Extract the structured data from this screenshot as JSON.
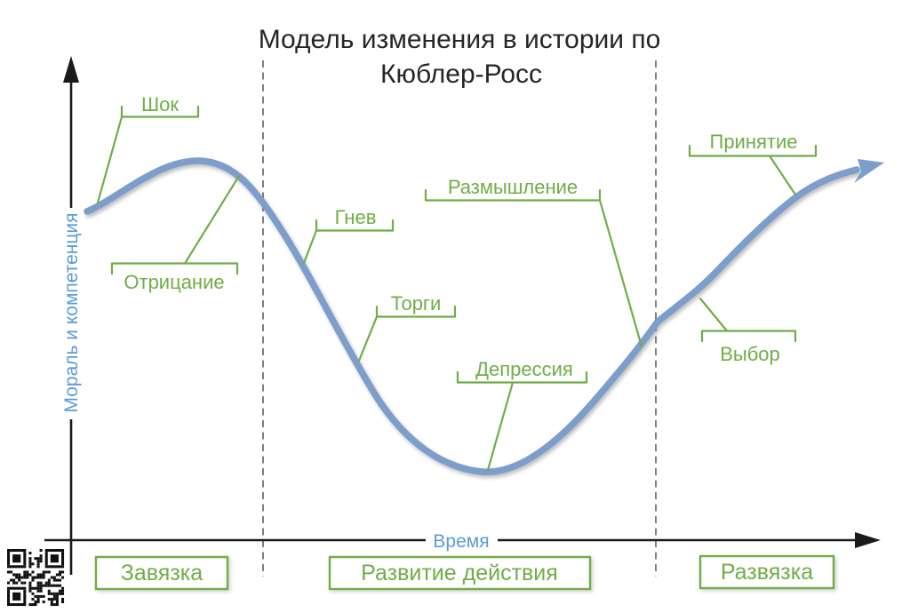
{
  "title": {
    "line1": "Модель изменения в истории по",
    "line2": "Кюблер-Росс"
  },
  "axes": {
    "y_label": "Мораль и компетенция",
    "x_label": "Время"
  },
  "stages": [
    {
      "id": "shock",
      "label": "Шок"
    },
    {
      "id": "denial",
      "label": "Отрицание"
    },
    {
      "id": "anger",
      "label": "Гнев"
    },
    {
      "id": "bargaining",
      "label": "Торги"
    },
    {
      "id": "reflection",
      "label": "Размышление"
    },
    {
      "id": "depression",
      "label": "Депрессия"
    },
    {
      "id": "choice",
      "label": "Выбор"
    },
    {
      "id": "acceptance",
      "label": "Принятие"
    }
  ],
  "phases": [
    {
      "id": "setup",
      "label": "Завязка"
    },
    {
      "id": "development",
      "label": "Развитие действия"
    },
    {
      "id": "resolution",
      "label": "Развязка"
    }
  ],
  "colors": {
    "label_green": "#70AD47",
    "axis_blue": "#5B9BD5",
    "curve_blue": "#7D9DCB",
    "axis_black": "#1a1a1a",
    "dash_gray": "#7f7f7f",
    "title_color": "#262626"
  }
}
